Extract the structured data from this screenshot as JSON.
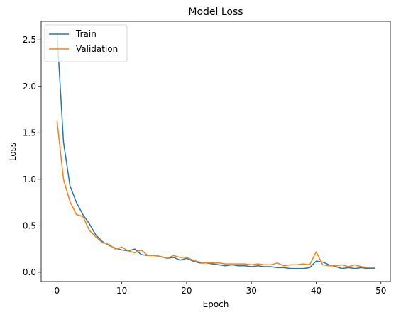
{
  "chart_data": {
    "type": "line",
    "title": "Model Loss",
    "xlabel": "Epoch",
    "ylabel": "Loss",
    "xlim": [
      -2.45,
      51.45
    ],
    "ylim": [
      -0.1,
      2.7
    ],
    "xticks": [
      0,
      10,
      20,
      30,
      40,
      50
    ],
    "xtick_labels": [
      "0",
      "10",
      "20",
      "30",
      "40",
      "50"
    ],
    "yticks": [
      0.0,
      0.5,
      1.0,
      1.5,
      2.0,
      2.5
    ],
    "ytick_labels": [
      "0.0",
      "0.5",
      "1.0",
      "1.5",
      "2.0",
      "2.5"
    ],
    "grid": false,
    "legend_position": "upper left",
    "x": [
      0,
      1,
      2,
      3,
      4,
      5,
      6,
      7,
      8,
      9,
      10,
      11,
      12,
      13,
      14,
      15,
      16,
      17,
      18,
      19,
      20,
      21,
      22,
      23,
      24,
      25,
      26,
      27,
      28,
      29,
      30,
      31,
      32,
      33,
      34,
      35,
      36,
      37,
      38,
      39,
      40,
      41,
      42,
      43,
      44,
      45,
      46,
      47,
      48,
      49
    ],
    "series": [
      {
        "name": "Train",
        "color": "#1f77b4",
        "values": [
          2.58,
          1.4,
          0.93,
          0.75,
          0.62,
          0.52,
          0.4,
          0.33,
          0.29,
          0.26,
          0.24,
          0.23,
          0.25,
          0.19,
          0.18,
          0.18,
          0.17,
          0.15,
          0.16,
          0.13,
          0.15,
          0.12,
          0.1,
          0.1,
          0.09,
          0.08,
          0.07,
          0.08,
          0.07,
          0.07,
          0.06,
          0.07,
          0.06,
          0.06,
          0.05,
          0.05,
          0.04,
          0.04,
          0.04,
          0.05,
          0.12,
          0.11,
          0.08,
          0.06,
          0.04,
          0.05,
          0.04,
          0.05,
          0.04,
          0.04
        ]
      },
      {
        "name": "Validation",
        "color": "#ff7f0e",
        "values": [
          1.63,
          1.0,
          0.76,
          0.62,
          0.6,
          0.45,
          0.38,
          0.32,
          0.3,
          0.25,
          0.27,
          0.23,
          0.21,
          0.24,
          0.18,
          0.18,
          0.17,
          0.15,
          0.18,
          0.16,
          0.16,
          0.13,
          0.11,
          0.1,
          0.1,
          0.1,
          0.09,
          0.09,
          0.09,
          0.09,
          0.08,
          0.09,
          0.08,
          0.08,
          0.1,
          0.07,
          0.08,
          0.08,
          0.09,
          0.08,
          0.22,
          0.08,
          0.07,
          0.07,
          0.08,
          0.06,
          0.08,
          0.06,
          0.05,
          0.05
        ]
      }
    ]
  }
}
